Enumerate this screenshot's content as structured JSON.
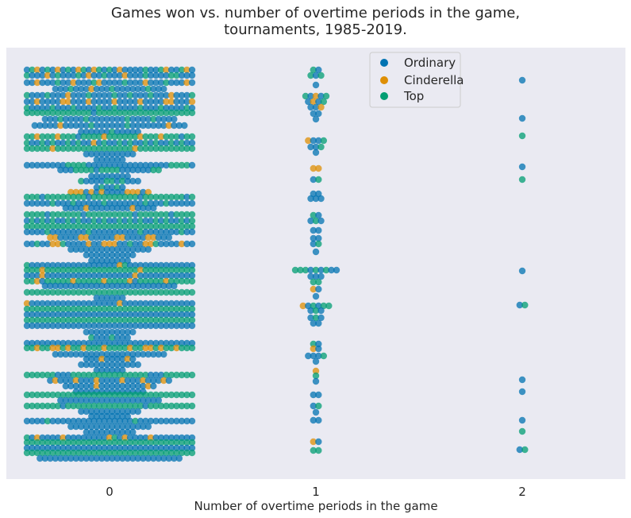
{
  "chart_data": {
    "type": "scatter",
    "subtype": "swarm",
    "title_lines": [
      "Games won vs. number of overtime periods in the game,",
      "tournaments, 1985-2019."
    ],
    "xlabel": "Number of overtime periods in the game",
    "ylabel": "",
    "categories": [
      "0",
      "1",
      "2"
    ],
    "y_axis_visible": false,
    "grid": false,
    "legend": {
      "placement": "top-center",
      "entries": [
        "Ordinary",
        "Cinderella",
        "Top"
      ]
    },
    "colors": {
      "Ordinary": "#0173b2",
      "Cinderella": "#de8f05",
      "Top": "#029e73",
      "background": "#eaeaf2"
    },
    "series": [
      {
        "name": "Ordinary"
      },
      {
        "name": "Cinderella"
      },
      {
        "name": "Top"
      }
    ],
    "strips": {
      "0": [
        {
          "y": 88,
          "n": 36,
          "mix": "OTCOTOCOTOCTOCTOTOCOOOOTOOTCO"
        },
        {
          "y": 95,
          "n": 36,
          "mix": "TOOOCOTOOOTOCOOTOOOCOOOTOOOOT"
        },
        {
          "y": 104,
          "n": 40,
          "mix": "OOCOOOTOOCOOOTCOOOOTOOOCOOOTO"
        },
        {
          "y": 112,
          "n": 22,
          "mix": "OOOTOOOCOOOTOOO"
        },
        {
          "y": 120,
          "n": 36,
          "mix": "TOOOTOOOCOOOTOOOOTOO"
        },
        {
          "y": 128,
          "n": 34,
          "mix": "OOCOOOOCCOOOCOOOOCOO"
        },
        {
          "y": 136,
          "n": 36,
          "mix": "TOOOOTOOOTOOOOTOO"
        },
        {
          "y": 142,
          "n": 36,
          "mix": "TTTTTTTTTTTTTOTTTTTTTTTTTT"
        },
        {
          "y": 150,
          "n": 26,
          "mix": "OOOTOOOOTOOOO"
        },
        {
          "y": 158,
          "n": 30,
          "mix": "OOOOOCOOOOOTOOOOOOTOO"
        },
        {
          "y": 166,
          "n": 12,
          "mix": "OOOOOOTO"
        },
        {
          "y": 172,
          "n": 36,
          "mix": "TTCTTTCTTTOTTTTCTTTT"
        },
        {
          "y": 180,
          "n": 36,
          "mix": "TOOTOTOOTOTOOCOTOOTO"
        },
        {
          "y": 187,
          "n": 36,
          "mix": "TTTTTCTTTTTTTTTT"
        },
        {
          "y": 194,
          "n": 10,
          "mix": "OOOOOO"
        },
        {
          "y": 201,
          "n": 6,
          "mix": "OOOO"
        },
        {
          "y": 208,
          "n": 34,
          "mix": "OOOOOOOOTTTTOOOOOOOO"
        },
        {
          "y": 214,
          "n": 20,
          "mix": "OOOTTTTOTTTTOOO"
        },
        {
          "y": 222,
          "n": 8,
          "mix": "OOOOOO"
        },
        {
          "y": 228,
          "n": 12,
          "mix": "TOOOOTTO"
        },
        {
          "y": 236,
          "n": 6,
          "mix": "OTO"
        },
        {
          "y": 242,
          "n": 16,
          "mix": "CCCOCOCOOOO"
        },
        {
          "y": 248,
          "n": 36,
          "mix": "TTTOTTTTTTTTOTTTTTT"
        },
        {
          "y": 256,
          "n": 36,
          "mix": "OOOOOTOOOTOOOOOTOO"
        },
        {
          "y": 262,
          "n": 18,
          "mix": "OOOOCOOOO"
        },
        {
          "y": 270,
          "n": 36,
          "mix": "TTTTOTTTTTTOTTTTT"
        },
        {
          "y": 278,
          "n": 36,
          "mix": "OTOTOTOOTOTOOTOTO"
        },
        {
          "y": 285,
          "n": 36,
          "mix": "TTTTTTTTTTTTTTTT"
        },
        {
          "y": 292,
          "n": 36,
          "mix": "OOOOTOOOOOOOTOOOOO"
        },
        {
          "y": 299,
          "n": 24,
          "mix": "CCOOOOCCOOOOO"
        },
        {
          "y": 307,
          "n": 36,
          "mix": "OOTOOCCTOOOOCOOCCC"
        },
        {
          "y": 314,
          "n": 16,
          "mix": "OOOOOOOOOO"
        },
        {
          "y": 321,
          "n": 10,
          "mix": "OOOOOO"
        },
        {
          "y": 328,
          "n": 8,
          "mix": "OOOOO"
        },
        {
          "y": 334,
          "n": 36,
          "mix": "TOOOOOOOOOOOOOOOOOC"
        },
        {
          "y": 340,
          "n": 36,
          "mix": "TTTCTTTTTTTTTTTTTTT"
        },
        {
          "y": 347,
          "n": 36,
          "mix": "OOOCOOOOOOOOOOOOOO"
        },
        {
          "y": 354,
          "n": 36,
          "mix": "TTCOTTTTTCTTTTTCTT"
        },
        {
          "y": 360,
          "n": 26,
          "mix": "OOOOOOOOOOOO"
        },
        {
          "y": 368,
          "n": 36,
          "mix": "TTTTTTTTTTTTTTTTT"
        },
        {
          "y": 375,
          "n": 6,
          "mix": "OOO"
        },
        {
          "y": 382,
          "n": 36,
          "mix": "COOOOOOOOOOOOOOOOO"
        },
        {
          "y": 389,
          "n": 36,
          "mix": "TTTTTTTTTTTTTTTTT"
        },
        {
          "y": 396,
          "n": 36,
          "mix": "OOOOOOOOOOOOOOO"
        },
        {
          "y": 403,
          "n": 36,
          "mix": "TTTTTTTTTTTTTTTT"
        },
        {
          "y": 410,
          "n": 36,
          "mix": "OOOOOOOOOOOOOOO"
        },
        {
          "y": 418,
          "n": 10,
          "mix": "OOOOOO"
        },
        {
          "y": 425,
          "n": 8,
          "mix": "TOOO"
        },
        {
          "y": 432,
          "n": 36,
          "mix": "OOOOOOOOOOOOOOO"
        },
        {
          "y": 438,
          "n": 36,
          "mix": "TTCTTCCTCTTCTTTCTT"
        },
        {
          "y": 446,
          "n": 22,
          "mix": "OOOOOOOOOOO"
        },
        {
          "y": 452,
          "n": 10,
          "mix": "OOOCO"
        },
        {
          "y": 459,
          "n": 12,
          "mix": "OOOOOO"
        },
        {
          "y": 466,
          "n": 6,
          "mix": "OOO"
        },
        {
          "y": 472,
          "n": 36,
          "mix": "TTTTTTOOOTTTTTTTTT"
        },
        {
          "y": 479,
          "n": 24,
          "mix": "OCOOOCOOOCOOO"
        },
        {
          "y": 486,
          "n": 18,
          "mix": "OOOOOOCOOO"
        },
        {
          "y": 493,
          "n": 14,
          "mix": "OOOOOOO"
        },
        {
          "y": 497,
          "n": 36,
          "mix": "TTTTTTTTTTTTTTTT"
        },
        {
          "y": 504,
          "n": 20,
          "mix": "OOOOOOOOOO"
        },
        {
          "y": 511,
          "n": 36,
          "mix": "TTTTTTTOTTTTTTTT"
        },
        {
          "y": 518,
          "n": 12,
          "mix": "OOOOOO"
        },
        {
          "y": 524,
          "n": 8,
          "mix": "OOOO"
        },
        {
          "y": 530,
          "n": 36,
          "mix": "OOOOTOOOOOOOOOOOO"
        },
        {
          "y": 537,
          "n": 16,
          "mix": "OOOOOOOO"
        },
        {
          "y": 544,
          "n": 10,
          "mix": "OOOOO"
        },
        {
          "y": 551,
          "n": 36,
          "mix": "TOCOOOOCOOOOOOOOC"
        },
        {
          "y": 557,
          "n": 36,
          "mix": "TTTTTTTTTTTTTTTT"
        },
        {
          "y": 564,
          "n": 36,
          "mix": "OOOOOOOOOOOOOOOO"
        },
        {
          "y": 570,
          "n": 36,
          "mix": "TTTTTTTTTTTTTTT"
        },
        {
          "y": 577,
          "n": 28,
          "mix": "OOOOOOOOOOOOOO"
        }
      ],
      "1": [
        {
          "y": 88,
          "n": 2,
          "mix": "TO"
        },
        {
          "y": 95,
          "n": 3,
          "mix": "TOT"
        },
        {
          "y": 107,
          "n": 1,
          "mix": "O"
        },
        {
          "y": 121,
          "n": 5,
          "mix": "TOCOT"
        },
        {
          "y": 128,
          "n": 4,
          "mix": "OCOT"
        },
        {
          "y": 135,
          "n": 3,
          "mix": "OOC"
        },
        {
          "y": 143,
          "n": 2,
          "mix": "OO"
        },
        {
          "y": 150,
          "n": 1,
          "mix": "O"
        },
        {
          "y": 177,
          "n": 4,
          "mix": "COOT"
        },
        {
          "y": 185,
          "n": 3,
          "mix": "OOT"
        },
        {
          "y": 192,
          "n": 1,
          "mix": "O"
        },
        {
          "y": 212,
          "n": 2,
          "mix": "CC"
        },
        {
          "y": 226,
          "n": 2,
          "mix": "OT"
        },
        {
          "y": 244,
          "n": 2,
          "mix": "OO"
        },
        {
          "y": 250,
          "n": 3,
          "mix": "OOO"
        },
        {
          "y": 271,
          "n": 2,
          "mix": "TO"
        },
        {
          "y": 278,
          "n": 3,
          "mix": "OTO"
        },
        {
          "y": 290,
          "n": 2,
          "mix": "OO"
        },
        {
          "y": 300,
          "n": 2,
          "mix": "OO"
        },
        {
          "y": 307,
          "n": 2,
          "mix": "OT"
        },
        {
          "y": 317,
          "n": 1,
          "mix": "O"
        },
        {
          "y": 340,
          "n": 9,
          "mix": "TTTOTOTOO"
        },
        {
          "y": 348,
          "n": 3,
          "mix": "OOO"
        },
        {
          "y": 355,
          "n": 2,
          "mix": "TT"
        },
        {
          "y": 364,
          "n": 2,
          "mix": "CO"
        },
        {
          "y": 373,
          "n": 1,
          "mix": "O"
        },
        {
          "y": 385,
          "n": 6,
          "mix": "COTOTT"
        },
        {
          "y": 391,
          "n": 3,
          "mix": "OTO"
        },
        {
          "y": 400,
          "n": 3,
          "mix": "OTO"
        },
        {
          "y": 407,
          "n": 2,
          "mix": "OO"
        },
        {
          "y": 433,
          "n": 2,
          "mix": "TO"
        },
        {
          "y": 439,
          "n": 2,
          "mix": "CO"
        },
        {
          "y": 448,
          "n": 4,
          "mix": "OOOT"
        },
        {
          "y": 455,
          "n": 1,
          "mix": "O"
        },
        {
          "y": 467,
          "n": 1,
          "mix": "C"
        },
        {
          "y": 473,
          "n": 1,
          "mix": "T"
        },
        {
          "y": 480,
          "n": 1,
          "mix": "O"
        },
        {
          "y": 497,
          "n": 2,
          "mix": "OO"
        },
        {
          "y": 511,
          "n": 2,
          "mix": "OT"
        },
        {
          "y": 519,
          "n": 1,
          "mix": "O"
        },
        {
          "y": 529,
          "n": 2,
          "mix": "OO"
        },
        {
          "y": 556,
          "n": 2,
          "mix": "CO"
        },
        {
          "y": 567,
          "n": 2,
          "mix": "TT"
        }
      ],
      "2": [
        {
          "y": 101,
          "n": 1,
          "mix": "O"
        },
        {
          "y": 149,
          "n": 1,
          "mix": "O"
        },
        {
          "y": 171,
          "n": 1,
          "mix": "T"
        },
        {
          "y": 210,
          "n": 1,
          "mix": "O"
        },
        {
          "y": 226,
          "n": 1,
          "mix": "T"
        },
        {
          "y": 341,
          "n": 1,
          "mix": "O"
        },
        {
          "y": 384,
          "n": 2,
          "mix": "OT"
        },
        {
          "y": 478,
          "n": 1,
          "mix": "O"
        },
        {
          "y": 493,
          "n": 1,
          "mix": "O"
        },
        {
          "y": 529,
          "n": 1,
          "mix": "O"
        },
        {
          "y": 543,
          "n": 1,
          "mix": "T"
        },
        {
          "y": 566,
          "n": 2,
          "mix": "OT"
        }
      ]
    }
  }
}
